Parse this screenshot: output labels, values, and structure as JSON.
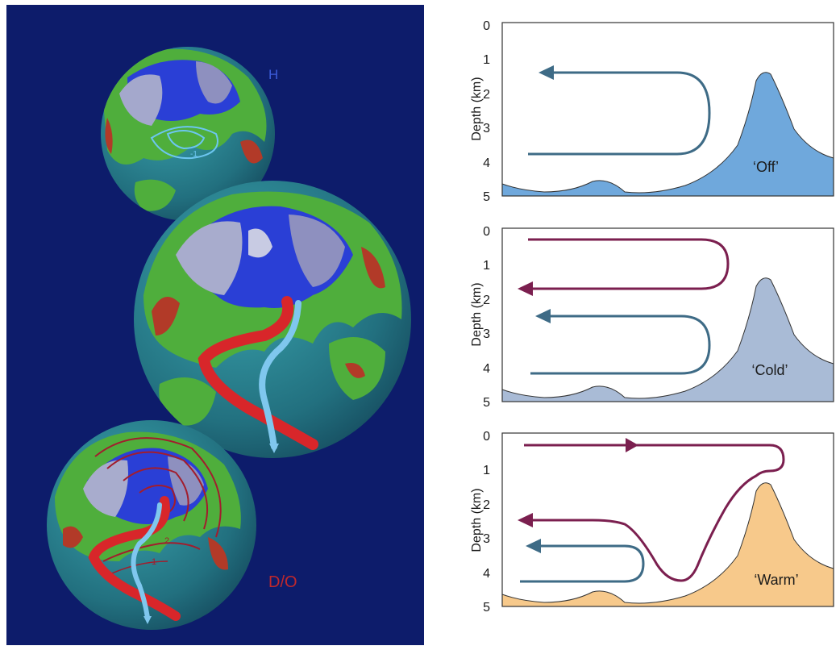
{
  "left_panel": {
    "label_top": "H",
    "label_bottom": "D/O",
    "contour_labels_top": [
      "-1"
    ],
    "contour_labels_bottom": [
      "2",
      "1"
    ],
    "colors": {
      "background": "#0d1c6b",
      "ocean": "#2e8f9a",
      "land_green": "#4fae3c",
      "land_red": "#b23a28",
      "ice": "#9ea3c8",
      "sea_ice_blue": "#2a3fd6",
      "warm_current": "#d8262a",
      "cold_current": "#7fc7ee",
      "label_red": "#c0282c",
      "label_blue": "#3b5bd8"
    }
  },
  "right_panel": {
    "y_axis_label": "Depth (km)",
    "y_ticks": [
      "0",
      "1",
      "2",
      "3",
      "4",
      "5"
    ],
    "panels": [
      {
        "mode": "‘Off’",
        "fill": "#6fa8dc"
      },
      {
        "mode": "‘Cold’",
        "fill": "#a9bbd6"
      },
      {
        "mode": "‘Warm’",
        "fill": "#f7c98b"
      }
    ],
    "colors": {
      "deep_cell": "#3e6b86",
      "surface_cell": "#7b1f4f"
    }
  }
}
